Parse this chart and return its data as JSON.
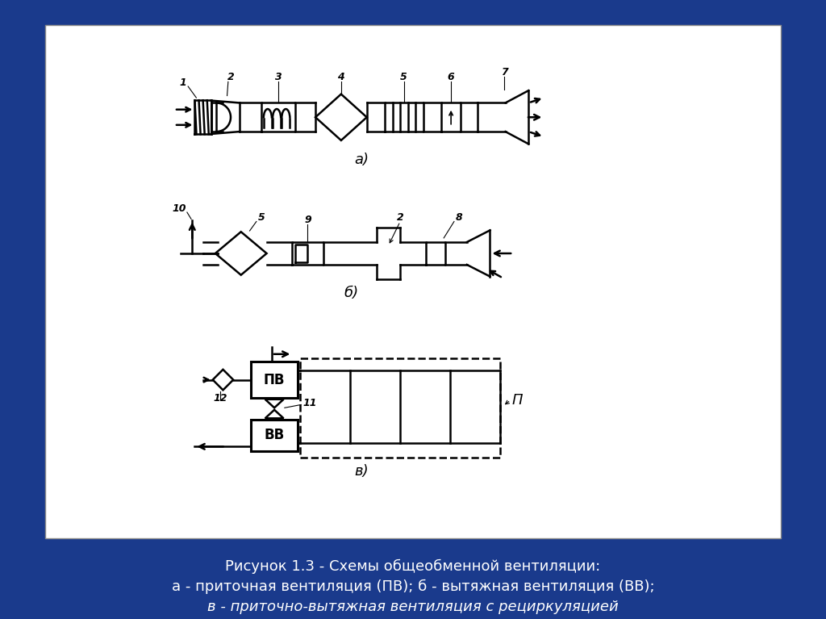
{
  "bg_color": "#1a3a8c",
  "white_bg": "#ffffff",
  "diagram_color": "#000000",
  "caption_line1": "Рисунок 1.3 - Схемы общеобменной вентиляции:",
  "caption_line2": "а - приточная вентиляция (ПВ); б - вытяжная вентиляция (ВВ);",
  "caption_line3": "в - приточно-вытяжная вентиляция с рециркуляцией",
  "caption_color": "#ffffff",
  "label_a": "а)",
  "label_b": "б)",
  "label_v": "в)"
}
